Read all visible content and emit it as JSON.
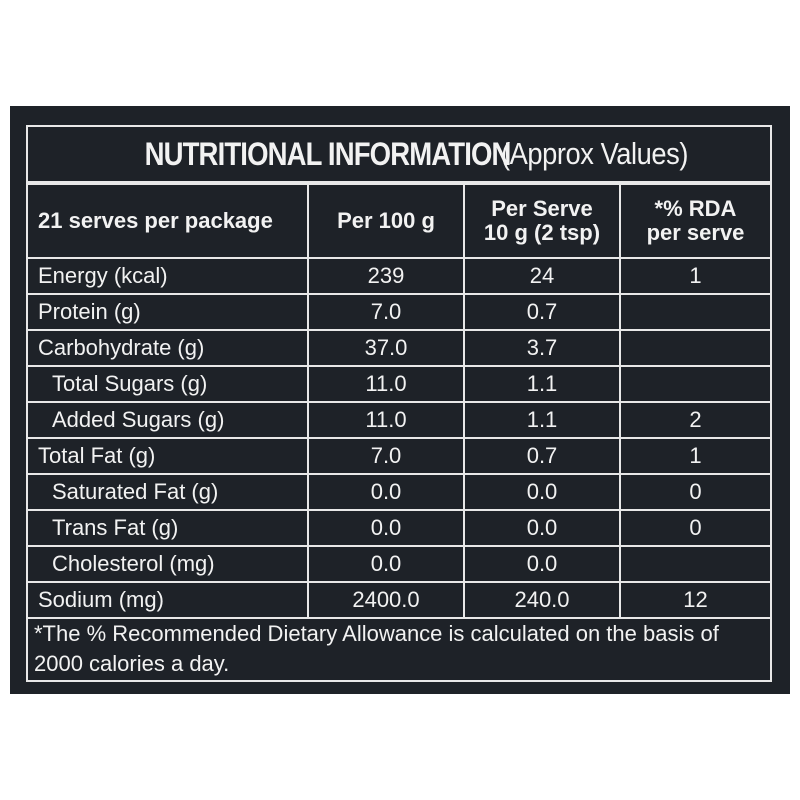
{
  "title_bold": "NUTRITIONAL INFORMATION",
  "title_light": "(Approx Values)",
  "header": {
    "col1": "21 serves per package",
    "col2": "Per 100 g",
    "col3_line1": "Per Serve",
    "col3_line2": "10 g (2 tsp)",
    "col4_line1": "*% RDA",
    "col4_line2": "per serve"
  },
  "rows": [
    {
      "label": "Energy (kcal)",
      "per100": "239",
      "perserve": "24",
      "rda": "1"
    },
    {
      "label": "Protein (g)",
      "per100": "7.0",
      "perserve": "0.7",
      "rda": ""
    },
    {
      "label": "Carbohydrate (g)",
      "per100": "37.0",
      "perserve": "3.7",
      "rda": ""
    },
    {
      "label": "Total Sugars (g)",
      "per100": "11.0",
      "perserve": "1.1",
      "rda": ""
    },
    {
      "label": "Added Sugars (g)",
      "per100": "11.0",
      "perserve": "1.1",
      "rda": "2"
    },
    {
      "label": "Total Fat (g)",
      "per100": "7.0",
      "perserve": "0.7",
      "rda": "1"
    },
    {
      "label": "Saturated Fat (g)",
      "per100": "0.0",
      "perserve": "0.0",
      "rda": "0"
    },
    {
      "label": "Trans Fat (g)",
      "per100": "0.0",
      "perserve": "0.0",
      "rda": "0"
    },
    {
      "label": "Cholesterol (mg)",
      "per100": "0.0",
      "perserve": "0.0",
      "rda": ""
    },
    {
      "label": "Sodium (mg)",
      "per100": "2400.0",
      "perserve": "240.0",
      "rda": "12"
    }
  ],
  "footnote": "*The % Recommended Dietary Allowance is calculated on the basis of 2000 calories a day."
}
